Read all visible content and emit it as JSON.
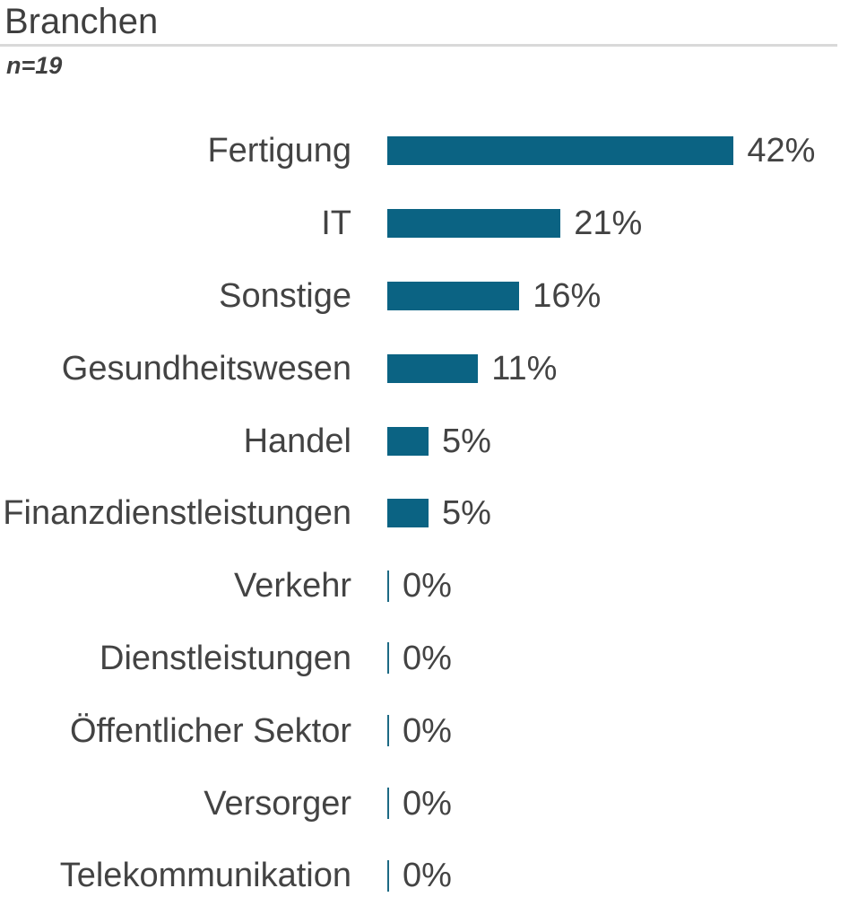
{
  "header": {
    "title": "Branchen",
    "sample_size": "n=19"
  },
  "colors": {
    "bar": "#0b6383",
    "zero_tick": "#1d6a84",
    "text": "#434343",
    "title_text": "#3f3f3f",
    "divider": "#d9d9d9",
    "background": "#ffffff"
  },
  "chart_data": {
    "type": "bar",
    "orientation": "horizontal",
    "title": "Branchen",
    "subtitle": "n=19",
    "categories": [
      "Fertigung",
      "IT",
      "Sonstige",
      "Gesundheitswesen",
      "Handel",
      "Finanzdienstleistungen",
      "Verkehr",
      "Dienstleistungen",
      "Öffentlicher Sektor",
      "Versorger",
      "Telekommunikation"
    ],
    "values": [
      42,
      21,
      16,
      11,
      5,
      5,
      0,
      0,
      0,
      0,
      0
    ],
    "value_labels": [
      "42%",
      "21%",
      "16%",
      "11%",
      "5%",
      "5%",
      "0%",
      "0%",
      "0%",
      "0%",
      "0%"
    ],
    "unit": "%",
    "xlabel": "",
    "ylabel": "",
    "xlim": [
      0,
      56
    ],
    "grid": false,
    "legend": false,
    "value_label_position": "end-of-bar",
    "zero_value_marker": "thin-tick"
  }
}
